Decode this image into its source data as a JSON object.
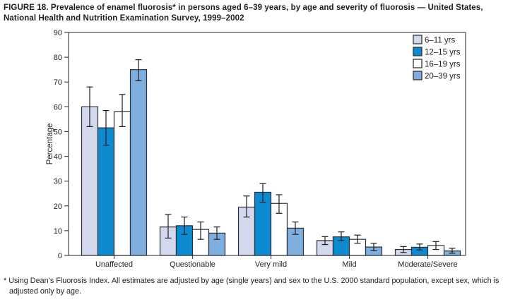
{
  "header": {
    "title_line1": "FIGURE 18. Prevalence of enamel fluorosis* in persons aged 6–39 years, by age and severity of fluorosis — United States,",
    "title_line2": "National Health and Nutrition Examination Survey, 1999–2002"
  },
  "chart_data": {
    "type": "bar",
    "title": "FIGURE 18. Prevalence of enamel fluorosis in persons aged 6–39 years, by age and severity of fluorosis — United States, National Health and Nutrition Examination Survey, 1999–2002",
    "xlabel": "",
    "ylabel": "Percentage",
    "ylim": [
      0,
      90
    ],
    "ytick_interval": 10,
    "ytick_labels": [
      "0",
      "10",
      "20",
      "30",
      "40",
      "50",
      "60",
      "70",
      "80",
      "90"
    ],
    "grid": false,
    "error_bars": true,
    "legend_position": "top-right-inside",
    "categories": [
      "Unaffected",
      "Questionable",
      "Very mild",
      "Mild",
      "Moderate/Severe"
    ],
    "series": [
      {
        "name": "6–11 yrs",
        "color": "#d3d8ec",
        "values": [
          60,
          11.5,
          19.5,
          6,
          2.4
        ],
        "ci_low": [
          52,
          7,
          15.5,
          4.4,
          1.2
        ],
        "ci_high": [
          68,
          16.5,
          24,
          7.6,
          3.6
        ]
      },
      {
        "name": "12–15 yrs",
        "color": "#0c8bd0",
        "values": [
          51.5,
          12,
          25.5,
          7.5,
          3.3
        ],
        "ci_low": [
          44.5,
          8.5,
          21.5,
          6,
          2.2
        ],
        "ci_high": [
          58.5,
          15.5,
          29,
          9.5,
          4.6
        ]
      },
      {
        "name": "16–19 yrs",
        "color": "#ffffff",
        "values": [
          58,
          10.5,
          21,
          6.5,
          4
        ],
        "ci_low": [
          52,
          6.5,
          17,
          4.9,
          2.4
        ],
        "ci_high": [
          65,
          13.5,
          24.5,
          8.2,
          5.6
        ]
      },
      {
        "name": "20–39 yrs",
        "color": "#7fafdf",
        "values": [
          75,
          9,
          11,
          3.4,
          1.8
        ],
        "ci_low": [
          70.5,
          6.5,
          8.5,
          1.9,
          0.9
        ],
        "ci_high": [
          79,
          11.5,
          13.5,
          4.9,
          2.9
        ]
      }
    ]
  },
  "footnote_line1": "* Using Dean’s Fluorosis Index. All estimates are adjusted by age (single years) and sex to the U.S. 2000 standard population, except sex, which is",
  "footnote_line2": "adjusted only by age.",
  "colors": {
    "axis": "#46474f",
    "text": "#231f20",
    "bar_border": "#2d3038",
    "error_bar": "#1d1d1f"
  }
}
